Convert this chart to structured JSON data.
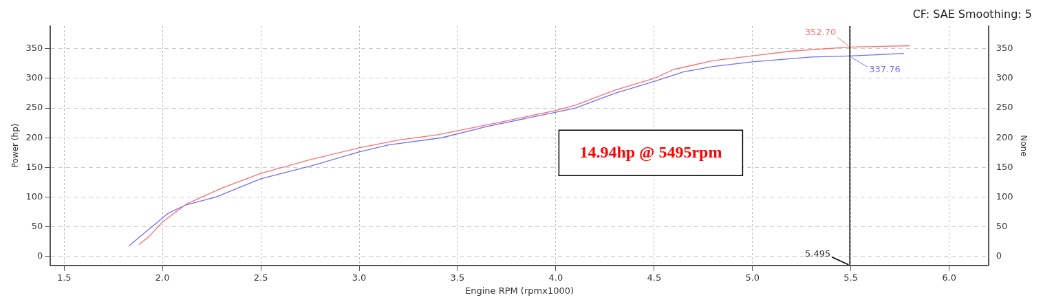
{
  "chart_data": {
    "type": "line",
    "xlabel": "Engine RPM (rpmx1000)",
    "ylabel": "Power (hp)",
    "y2label": "None",
    "xlim": [
      1.43,
      6.2
    ],
    "xticks": [
      {
        "value": 1.5,
        "label": "1.5"
      },
      {
        "value": 2,
        "label": "2.0"
      },
      {
        "value": 2.5,
        "label": "2.5"
      },
      {
        "value": 3,
        "label": "3.0"
      },
      {
        "value": 3.5,
        "label": "3.5"
      },
      {
        "value": 4,
        "label": "4.0"
      },
      {
        "value": 4.5,
        "label": "4.5"
      },
      {
        "value": 5,
        "label": "5.0"
      },
      {
        "value": 5.5,
        "label": "5.5"
      },
      {
        "value": 6,
        "label": "6.0"
      }
    ],
    "ylim": [
      -15,
      388
    ],
    "yticks": [
      0,
      50,
      100,
      150,
      200,
      250,
      300,
      350
    ],
    "y2lim": [
      -15,
      388
    ],
    "y2ticks": [
      0,
      50,
      100,
      150,
      200,
      250,
      300,
      350
    ],
    "grid": true,
    "legend": false,
    "marker": "none",
    "line_style": "solid",
    "series": [
      {
        "color": "#ff6f6f",
        "x": [
          1.88,
          1.93,
          2.0,
          2.12,
          2.3,
          2.5,
          2.75,
          3.0,
          3.2,
          3.4,
          3.7,
          4.0,
          4.1,
          4.3,
          4.5,
          4.6,
          4.8,
          5.0,
          5.2,
          5.495,
          5.8
        ],
        "values": [
          20,
          33,
          58,
          88,
          115,
          140,
          163,
          183,
          196,
          205,
          225,
          246,
          255,
          280,
          300,
          315,
          330,
          338,
          346,
          352.7,
          355
        ]
      },
      {
        "color": "#6f6fff",
        "x": [
          1.83,
          2.03,
          2.12,
          2.27,
          2.5,
          2.75,
          3.0,
          3.15,
          3.42,
          3.65,
          4.0,
          4.1,
          4.3,
          4.5,
          4.65,
          4.8,
          5.0,
          5.3,
          5.495,
          5.77
        ],
        "values": [
          18,
          73,
          87,
          100,
          131,
          152,
          176,
          188,
          200,
          219,
          243,
          250,
          275,
          295,
          311,
          320,
          328,
          336,
          337.76,
          342
        ]
      }
    ],
    "ref_lines": [
      {
        "axis": "x",
        "value": 5.495,
        "label": "5.495",
        "color": "#000000"
      }
    ],
    "annotations": [
      "CF: SAE Smoothing: 5",
      "14.94hp @ 5495rpm",
      {
        "text": "352.70",
        "x": 5.495,
        "y": 352.7
      },
      {
        "text": "337.76",
        "x": 5.495,
        "y": 337.76
      }
    ]
  }
}
